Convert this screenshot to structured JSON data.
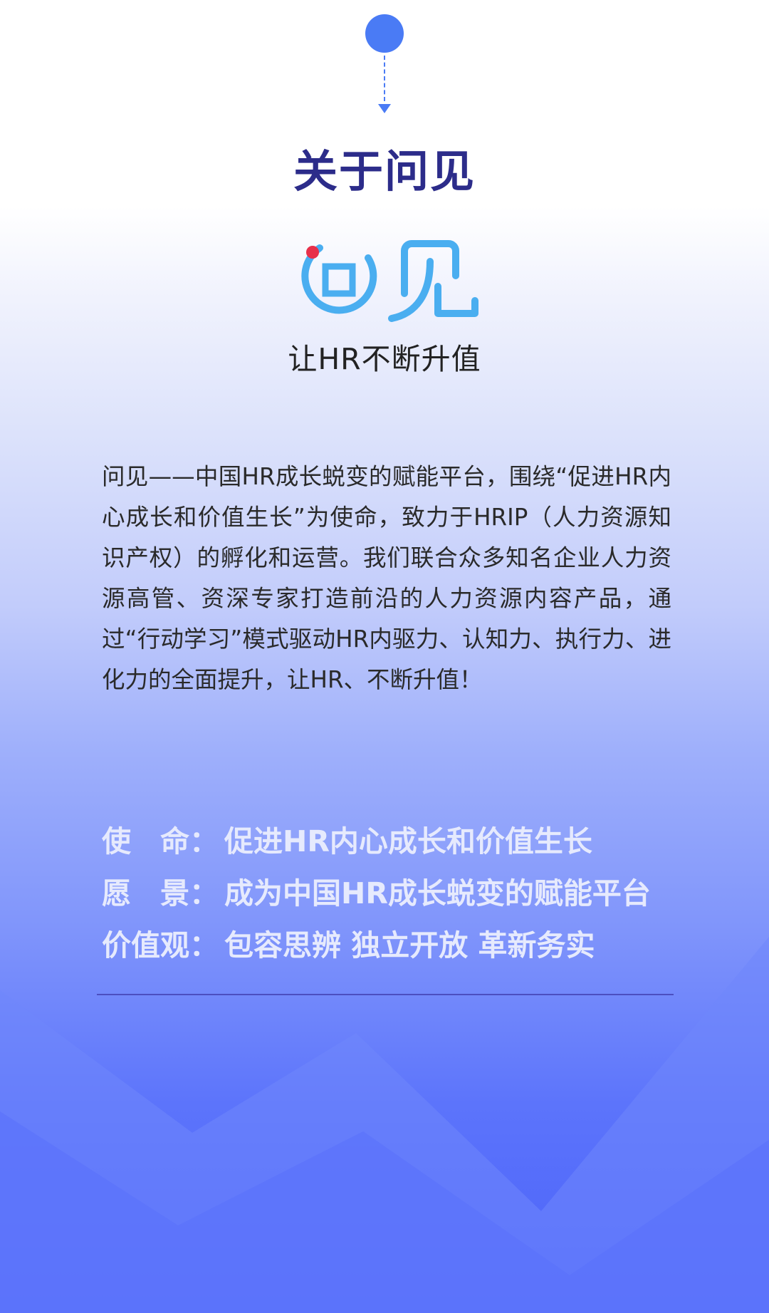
{
  "header": {
    "title": "关于问见"
  },
  "logo": {
    "wordmark": "问见",
    "tagline": "让HR不断升值"
  },
  "intro": {
    "text": "问见——中国HR成长蜕变的赋能平台，围绕“促进HR内心成长和价值生长”为使命，致力于HRIP（人力资源知识产权）的孵化和运营。我们联合众多知名企业人力资源高管、资深专家打造前沿的人力资源内容产品，通过“行动学习”模式驱动HR内驱力、认知力、执行力、进化力的全面提升，让HR、不断升值！"
  },
  "values": [
    {
      "label": "使　命：",
      "value": "促进HR内心成长和价值生长"
    },
    {
      "label": "愿　景：",
      "value": "成为中国HR成长蜕变的赋能平台"
    },
    {
      "label": "价值观：",
      "value": "包容思辨 独立开放 革新务实"
    }
  ],
  "colors": {
    "accent": "#4a7bf5",
    "title": "#2c2c8a",
    "logo_blue": "#4aaef0",
    "logo_dot": "#e8304a",
    "values_text": "#e6eafd",
    "bottom_blue": "#4a62fa"
  }
}
